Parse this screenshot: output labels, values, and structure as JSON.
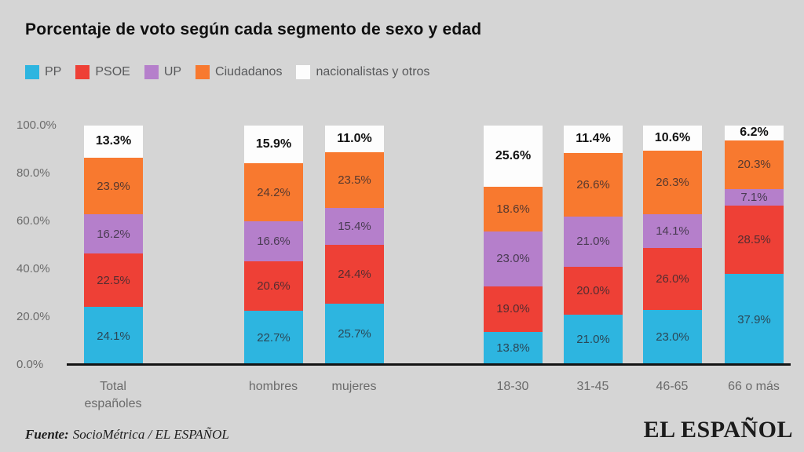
{
  "title": "Porcentaje de voto según cada segmento de sexo y edad",
  "chart_data": {
    "type": "bar",
    "stacked": true,
    "title": "Porcentaje de voto según cada segmento de sexo y edad",
    "categories": [
      "Total españoles",
      "hombres",
      "mujeres",
      "18-30",
      "31-45",
      "46-65",
      "66 o más"
    ],
    "series": [
      {
        "name": "PP",
        "color": "#2db5e0",
        "values": [
          24.1,
          22.7,
          25.7,
          13.8,
          21.0,
          23.0,
          37.9
        ]
      },
      {
        "name": "PSOE",
        "color": "#ee4036",
        "values": [
          22.5,
          20.6,
          24.4,
          19.0,
          20.0,
          26.0,
          28.5
        ]
      },
      {
        "name": "UP",
        "color": "#b57fcb",
        "values": [
          16.2,
          16.6,
          15.4,
          23.0,
          21.0,
          14.1,
          7.1
        ]
      },
      {
        "name": "Ciudadanos",
        "color": "#f8792f",
        "values": [
          23.9,
          24.2,
          23.5,
          18.6,
          26.6,
          26.3,
          20.3
        ]
      },
      {
        "name": "nacionalistas y otros",
        "color": "#fdfdfd",
        "values": [
          13.3,
          15.9,
          11.0,
          25.6,
          11.4,
          10.6,
          6.2
        ],
        "emphasis": true
      }
    ],
    "yticks": [
      "100.0%",
      "80.0%",
      "60.0%",
      "40.0%",
      "20.0%",
      "0.0%"
    ],
    "ylim": [
      0,
      100
    ],
    "value_suffix": "%",
    "legend_position": "top-left",
    "grid": false
  },
  "footer": {
    "source_prefix": "Fuente:",
    "source_text": "SocioMétrica / EL ESPAÑOL",
    "brand": "EL ESPAÑOL"
  }
}
